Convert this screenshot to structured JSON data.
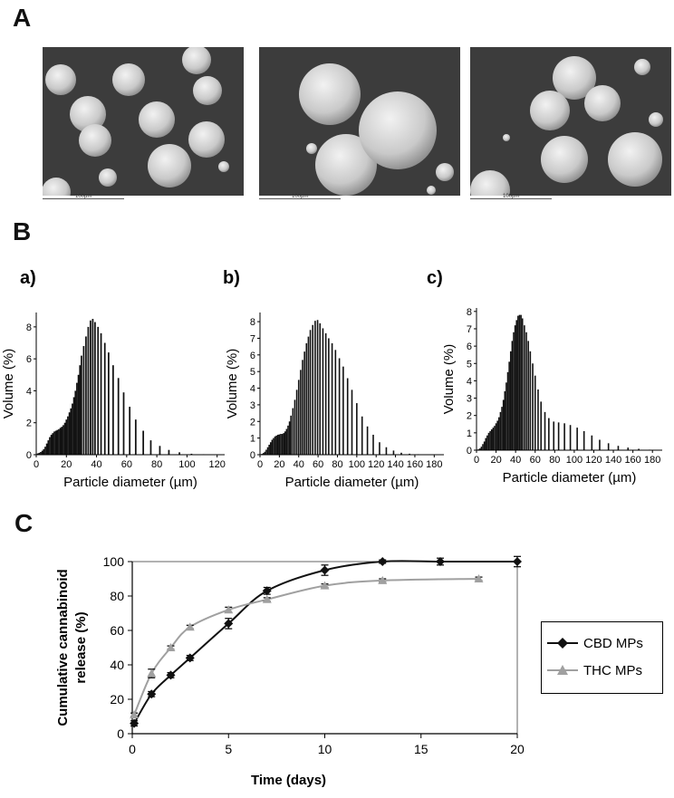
{
  "panel_labels": {
    "A": "A",
    "B": "B",
    "C": "C"
  },
  "sem_images": [
    {
      "scale_bar": "100µm"
    },
    {
      "scale_bar": "100µm"
    },
    {
      "scale_bar": "100µm"
    }
  ],
  "colors": {
    "bars": "#111111",
    "cbd": "#111111",
    "thc": "#a0a0a0",
    "sem_bg": "#3a3a3a"
  },
  "chart_data": [
    {
      "type": "bar",
      "panel": "a)",
      "xlabel": "Particle diameter (µm)",
      "ylabel": "Volume (%)",
      "xlim": [
        0,
        125
      ],
      "ylim": [
        0,
        8.9
      ],
      "xticks": [
        "0",
        "20",
        "40",
        "60",
        "80",
        "100",
        "120"
      ],
      "yticks": [
        "0",
        "2",
        "4",
        "6",
        "8"
      ],
      "x": [
        1.0,
        2.0,
        3.0,
        4.0,
        5.0,
        6.0,
        7.0,
        8.0,
        9.0,
        10.0,
        11.0,
        12.0,
        13.0,
        14.0,
        15.0,
        16.0,
        17.0,
        18.0,
        19.0,
        20.0,
        21.0,
        22.0,
        23.0,
        24.0,
        25.0,
        26.0,
        27.0,
        28.0,
        29.0,
        30.0,
        31.5,
        33.0,
        34.5,
        36.0,
        37.5,
        39.0,
        41.0,
        43.0,
        45.5,
        48.0,
        51.0,
        54.5,
        58.0,
        62.0,
        66.0,
        71.0,
        76.0,
        82.0,
        88.0,
        95.0,
        103.0,
        111.0,
        120.0
      ],
      "values": [
        0.08,
        0.12,
        0.17,
        0.25,
        0.35,
        0.5,
        0.7,
        0.9,
        1.1,
        1.25,
        1.35,
        1.45,
        1.5,
        1.55,
        1.6,
        1.68,
        1.75,
        1.85,
        2.0,
        2.2,
        2.4,
        2.65,
        2.9,
        3.2,
        3.6,
        4.0,
        4.5,
        5.0,
        5.6,
        6.2,
        6.8,
        7.4,
        8.0,
        8.4,
        8.5,
        8.3,
        8.0,
        7.6,
        7.0,
        6.4,
        5.6,
        4.8,
        3.9,
        3.0,
        2.2,
        1.5,
        0.9,
        0.55,
        0.3,
        0.15,
        0.06,
        0.03,
        0.01
      ]
    },
    {
      "type": "bar",
      "panel": "b)",
      "xlabel": "Particle diameter (µm)",
      "ylabel": "Volume (%)",
      "xlim": [
        0,
        190
      ],
      "ylim": [
        0,
        8.55
      ],
      "xticks": [
        "0",
        "20",
        "40",
        "60",
        "80",
        "100",
        "120",
        "140",
        "160",
        "180"
      ],
      "yticks": [
        "0",
        "1",
        "2",
        "3",
        "4",
        "5",
        "6",
        "7",
        "8"
      ],
      "x": [
        2.0,
        3.5,
        5.0,
        6.5,
        8.0,
        9.5,
        11.0,
        12.5,
        14.0,
        15.5,
        17.0,
        18.5,
        20.0,
        21.5,
        23.0,
        24.5,
        26.0,
        27.5,
        29.0,
        30.5,
        32.0,
        34.0,
        36.0,
        38.0,
        40.0,
        42.0,
        44.0,
        46.0,
        48.0,
        50.0,
        52.0,
        54.5,
        57.0,
        59.5,
        62.0,
        65.0,
        68.0,
        71.0,
        74.5,
        78.0,
        82.0,
        86.0,
        90.5,
        95.0,
        100.0,
        105.5,
        111.0,
        117.0,
        123.5,
        130.5,
        138.0,
        146.0,
        154.5,
        163.5,
        173.0,
        182.0
      ],
      "values": [
        0.05,
        0.1,
        0.18,
        0.3,
        0.45,
        0.6,
        0.75,
        0.9,
        1.0,
        1.1,
        1.15,
        1.2,
        1.22,
        1.25,
        1.25,
        1.3,
        1.4,
        1.55,
        1.75,
        2.0,
        2.35,
        2.8,
        3.3,
        3.9,
        4.5,
        5.1,
        5.7,
        6.2,
        6.7,
        7.1,
        7.5,
        7.8,
        8.05,
        8.1,
        7.9,
        7.6,
        7.3,
        7.0,
        6.7,
        6.3,
        5.8,
        5.3,
        4.6,
        3.9,
        3.1,
        2.3,
        1.7,
        1.2,
        0.75,
        0.45,
        0.25,
        0.12,
        0.06,
        0.03,
        0.02,
        0.01
      ]
    },
    {
      "type": "bar",
      "panel": "c)",
      "xlabel": "Particle diameter (µm)",
      "ylabel": "Volume (%)",
      "xlim": [
        0,
        190
      ],
      "ylim": [
        0,
        8.2
      ],
      "xticks": [
        "0",
        "20",
        "40",
        "60",
        "80",
        "100",
        "120",
        "140",
        "160",
        "180"
      ],
      "yticks": [
        "0",
        "1",
        "2",
        "3",
        "4",
        "5",
        "6",
        "7",
        "8"
      ],
      "x": [
        2.0,
        3.5,
        5.0,
        6.5,
        8.0,
        9.5,
        11.0,
        12.5,
        14.0,
        15.5,
        17.0,
        18.5,
        20.0,
        21.5,
        23.0,
        24.5,
        26.0,
        27.5,
        29.0,
        30.5,
        32.0,
        33.5,
        35.0,
        36.5,
        38.0,
        39.5,
        41.0,
        42.5,
        44.0,
        45.5,
        47.0,
        49.0,
        51.0,
        53.0,
        55.0,
        57.5,
        60.0,
        63.0,
        66.0,
        70.0,
        74.0,
        79.0,
        84.0,
        90.0,
        96.0,
        103.0,
        110.0,
        118.0,
        126.0,
        135.0,
        145.0,
        155.0,
        166.0,
        177.0,
        184.0
      ],
      "values": [
        0.05,
        0.1,
        0.2,
        0.35,
        0.5,
        0.7,
        0.85,
        1.0,
        1.1,
        1.2,
        1.3,
        1.4,
        1.55,
        1.7,
        1.9,
        2.2,
        2.5,
        2.9,
        3.4,
        3.9,
        4.5,
        5.1,
        5.7,
        6.3,
        6.8,
        7.2,
        7.5,
        7.75,
        7.8,
        7.8,
        7.6,
        7.2,
        6.8,
        6.3,
        5.7,
        5.0,
        4.3,
        3.5,
        2.8,
        2.2,
        1.85,
        1.65,
        1.6,
        1.55,
        1.45,
        1.3,
        1.1,
        0.85,
        0.6,
        0.4,
        0.25,
        0.15,
        0.08,
        0.03,
        0.01
      ]
    },
    {
      "type": "line",
      "xlabel": "Time (days)",
      "ylabel": "Cumulative cannabinoid release (%)",
      "xlim": [
        0,
        20
      ],
      "ylim": [
        0,
        100
      ],
      "xticks": [
        "0",
        "5",
        "10",
        "15",
        "20"
      ],
      "yticks": [
        "0",
        "20",
        "40",
        "60",
        "80",
        "100"
      ],
      "legend": "right",
      "series": [
        {
          "name": "CBD MPs",
          "marker": "diamond",
          "x": [
            0.1,
            1,
            2,
            3,
            5,
            7,
            10,
            13,
            16,
            20
          ],
          "y": [
            6,
            23,
            34,
            44,
            64,
            83,
            95,
            100,
            100,
            100
          ],
          "err": [
            1.5,
            1.5,
            1.5,
            1.5,
            3,
            2,
            3,
            1,
            2,
            3
          ]
        },
        {
          "name": "THC MPs",
          "marker": "triangle",
          "x": [
            0.1,
            1,
            2,
            3,
            5,
            7,
            10,
            13,
            18
          ],
          "y": [
            11,
            35,
            50,
            62,
            72,
            78,
            86,
            89,
            90
          ],
          "err": [
            1,
            2.5,
            1,
            1,
            1.5,
            1,
            1,
            1,
            1
          ]
        }
      ]
    }
  ]
}
